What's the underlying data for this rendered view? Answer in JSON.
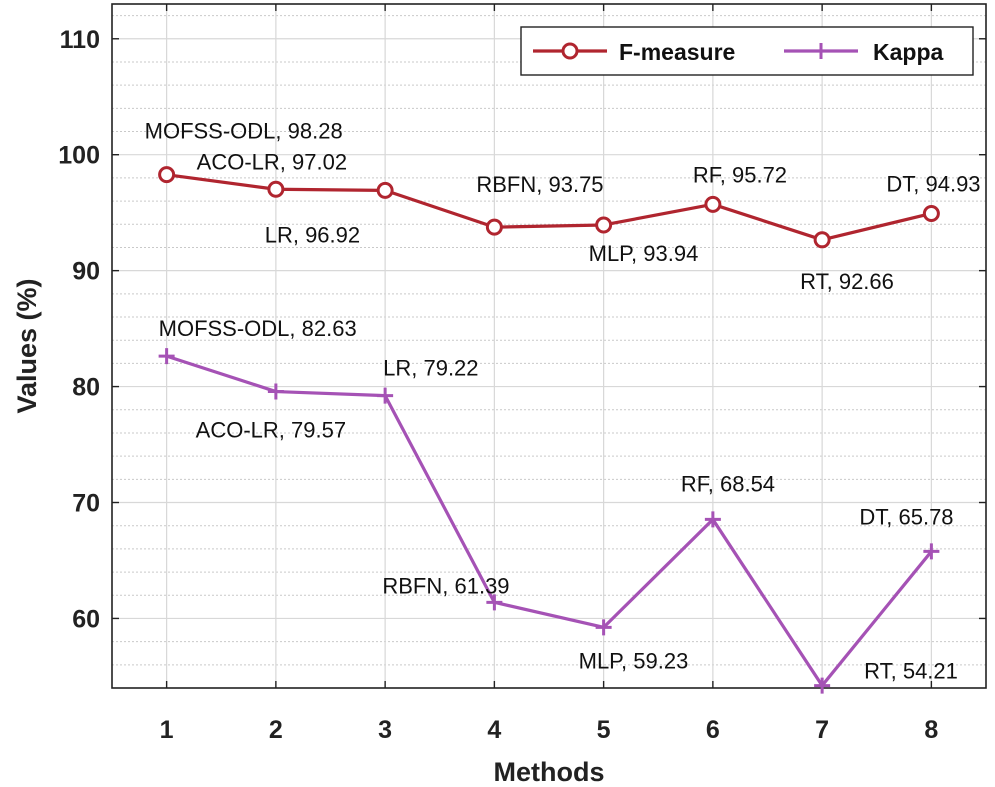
{
  "chart_data": {
    "type": "line",
    "title": "",
    "xlabel": "Methods",
    "ylabel": "Values (%)",
    "x": [
      1,
      2,
      3,
      4,
      5,
      6,
      7,
      8
    ],
    "xticks": [
      "1",
      "2",
      "3",
      "4",
      "5",
      "6",
      "7",
      "8"
    ],
    "xlim": [
      0.5,
      8.5
    ],
    "ylim": [
      54,
      113
    ],
    "yticks": [
      "60",
      "70",
      "80",
      "90",
      "100",
      "110"
    ],
    "grid": true,
    "legend_position": "top-right",
    "series": [
      {
        "name": "F-measure",
        "color": "#b0252f",
        "marker": "circle",
        "values": [
          98.28,
          97.02,
          96.92,
          93.75,
          93.94,
          95.72,
          92.66,
          94.93
        ],
        "labels": [
          "MOFSS-ODL, 98.28",
          "ACO-LR, 97.02",
          "LR, 96.92",
          "RBFN, 93.75",
          "MLP, 93.94",
          "RF, 95.72",
          "RT, 92.66",
          "DT, 94.93"
        ]
      },
      {
        "name": "Kappa",
        "color": "#a552b5",
        "marker": "plus",
        "values": [
          82.63,
          79.57,
          79.22,
          61.39,
          59.23,
          68.54,
          54.21,
          65.78
        ],
        "labels": [
          "MOFSS-ODL, 82.63",
          "ACO-LR, 79.57",
          "LR, 79.22",
          "RBFN, 61.39",
          "MLP, 59.23",
          "RF, 68.54",
          "RT, 54.21",
          "DT, 65.78"
        ]
      }
    ]
  }
}
